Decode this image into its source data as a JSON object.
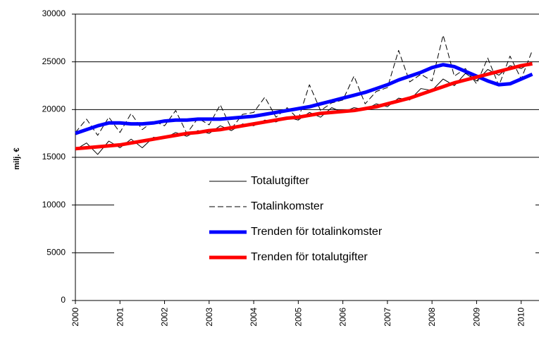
{
  "chart_data": {
    "type": "line",
    "ylabel": "milj. €",
    "x": [
      2000,
      2000.25,
      2000.5,
      2000.75,
      2001,
      2001.25,
      2001.5,
      2001.75,
      2002,
      2002.25,
      2002.5,
      2002.75,
      2003,
      2003.25,
      2003.5,
      2003.75,
      2004,
      2004.25,
      2004.5,
      2004.75,
      2005,
      2005.25,
      2005.5,
      2005.75,
      2006,
      2006.25,
      2006.5,
      2006.75,
      2007,
      2007.25,
      2007.5,
      2007.75,
      2008,
      2008.25,
      2008.5,
      2008.75,
      2009,
      2009.25,
      2009.5,
      2009.75,
      2010,
      2010.25
    ],
    "series": [
      {
        "name": "Totalutgifter",
        "color": "#000000",
        "width": 1,
        "dash": false,
        "values": [
          15800,
          16500,
          15300,
          16700,
          16000,
          16900,
          16000,
          17100,
          17000,
          17600,
          17200,
          17800,
          17500,
          18300,
          17800,
          18500,
          18300,
          18900,
          18700,
          19200,
          18900,
          19700,
          19200,
          20200,
          19700,
          20200,
          20000,
          20600,
          20300,
          21200,
          21000,
          22200,
          22000,
          23200,
          22500,
          23800,
          23000,
          24200,
          23600,
          24600,
          24300,
          25000
        ]
      },
      {
        "name": "Totalinkomster",
        "color": "#000000",
        "width": 1,
        "dash": true,
        "values": [
          17600,
          19000,
          17300,
          19200,
          17600,
          19600,
          17900,
          18800,
          18300,
          19900,
          17500,
          19100,
          18400,
          20500,
          18000,
          19500,
          19700,
          21300,
          19200,
          20200,
          19000,
          22600,
          19900,
          20700,
          21000,
          23500,
          20600,
          21900,
          22300,
          26200,
          22900,
          23700,
          23000,
          27800,
          23500,
          24300,
          22700,
          25400,
          22500,
          25600,
          23200,
          26200
        ]
      },
      {
        "name": "Trenden för totalinkomster",
        "color": "#0000ff",
        "width": 5,
        "dash": false,
        "values": [
          17500,
          17900,
          18300,
          18600,
          18600,
          18500,
          18500,
          18600,
          18800,
          18900,
          18900,
          19000,
          19000,
          19000,
          19100,
          19200,
          19300,
          19500,
          19700,
          19900,
          20100,
          20300,
          20600,
          20900,
          21200,
          21500,
          21800,
          22200,
          22600,
          23100,
          23500,
          23900,
          24400,
          24700,
          24500,
          24000,
          23500,
          23000,
          22600,
          22700,
          23200,
          23700
        ]
      },
      {
        "name": "Trenden för totalutgifter",
        "color": "#ff0000",
        "width": 5,
        "dash": false,
        "values": [
          15900,
          16000,
          16100,
          16200,
          16300,
          16500,
          16700,
          16900,
          17100,
          17300,
          17500,
          17600,
          17800,
          17900,
          18100,
          18300,
          18500,
          18700,
          18900,
          19100,
          19200,
          19400,
          19600,
          19700,
          19800,
          19900,
          20100,
          20300,
          20600,
          20900,
          21200,
          21600,
          22000,
          22400,
          22800,
          23100,
          23400,
          23700,
          24000,
          24300,
          24600,
          24800
        ]
      }
    ],
    "xlim": [
      2000,
      2010.4
    ],
    "xticks": [
      2000,
      2001,
      2002,
      2003,
      2004,
      2005,
      2006,
      2007,
      2008,
      2009,
      2010
    ],
    "ylim": [
      0,
      30000
    ],
    "yticks": [
      0,
      5000,
      10000,
      15000,
      20000,
      25000,
      30000
    ],
    "grid": true
  }
}
